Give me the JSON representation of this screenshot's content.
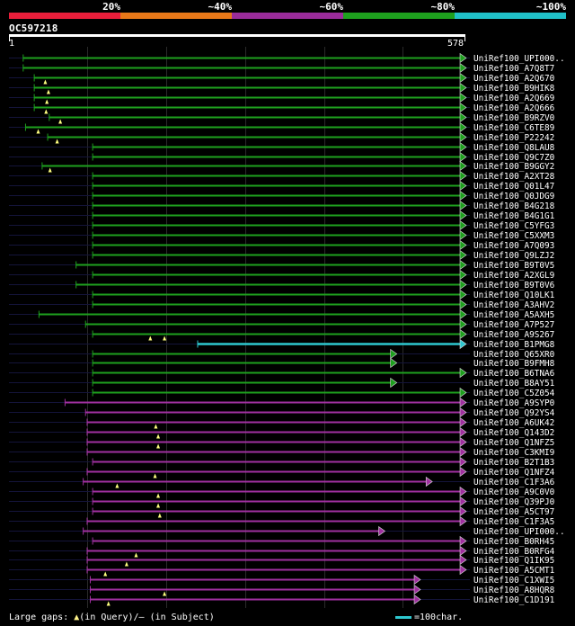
{
  "header": {
    "scale_labels": [
      "20%",
      "~40%",
      "~60%",
      "~80%",
      "~100%"
    ],
    "scale_colors": [
      "#e81e3a",
      "#e87818",
      "#9a2c9a",
      "#1ea01e",
      "#20c0c8"
    ],
    "query_id": "OC597218",
    "query_start": "1",
    "query_end": "578"
  },
  "colors": {
    "green": "#1ea01e",
    "magenta": "#a030a0",
    "cyan": "#2ec8d0",
    "gap_marker": "#ffff80",
    "background": "#000000"
  },
  "hits": [
    {
      "name": "UniRef100_UPI000..",
      "color": "green",
      "start": 19,
      "end": 578,
      "gaps": []
    },
    {
      "name": "UniRef100_A7Q8T7",
      "color": "green",
      "start": 19,
      "end": 578,
      "gaps": []
    },
    {
      "name": "UniRef100_A2Q670",
      "color": "green",
      "start": 33,
      "end": 578,
      "gaps": [
        47
      ]
    },
    {
      "name": "UniRef100_B9HIK8",
      "color": "green",
      "start": 33,
      "end": 578,
      "gaps": [
        51
      ]
    },
    {
      "name": "UniRef100_A2Q669",
      "color": "green",
      "start": 33,
      "end": 578,
      "gaps": [
        49
      ]
    },
    {
      "name": "UniRef100_A2Q666",
      "color": "green",
      "start": 33,
      "end": 578,
      "gaps": [
        48
      ]
    },
    {
      "name": "UniRef100_B9RZV0",
      "color": "green",
      "start": 52,
      "end": 578,
      "gaps": [
        66
      ]
    },
    {
      "name": "UniRef100_C6TE89",
      "color": "green",
      "start": 22,
      "end": 578,
      "gaps": [
        38
      ]
    },
    {
      "name": "UniRef100_P22242",
      "color": "green",
      "start": 50,
      "end": 578,
      "gaps": [
        62
      ]
    },
    {
      "name": "UniRef100_Q8LAU8",
      "color": "green",
      "start": 107,
      "end": 578,
      "gaps": []
    },
    {
      "name": "UniRef100_Q9C7Z0",
      "color": "green",
      "start": 107,
      "end": 578,
      "gaps": []
    },
    {
      "name": "UniRef100_B9GGY2",
      "color": "green",
      "start": 43,
      "end": 578,
      "gaps": [
        53
      ]
    },
    {
      "name": "UniRef100_A2XT28",
      "color": "green",
      "start": 107,
      "end": 578,
      "gaps": []
    },
    {
      "name": "UniRef100_Q01L47",
      "color": "green",
      "start": 107,
      "end": 578,
      "gaps": []
    },
    {
      "name": "UniRef100_Q0JDG9",
      "color": "green",
      "start": 107,
      "end": 578,
      "gaps": []
    },
    {
      "name": "UniRef100_B4G218",
      "color": "green",
      "start": 107,
      "end": 578,
      "gaps": []
    },
    {
      "name": "UniRef100_B4G1G1",
      "color": "green",
      "start": 107,
      "end": 578,
      "gaps": []
    },
    {
      "name": "UniRef100_C5YFG3",
      "color": "green",
      "start": 107,
      "end": 578,
      "gaps": []
    },
    {
      "name": "UniRef100_C5XXM3",
      "color": "green",
      "start": 107,
      "end": 578,
      "gaps": []
    },
    {
      "name": "UniRef100_A7Q093",
      "color": "green",
      "start": 107,
      "end": 578,
      "gaps": []
    },
    {
      "name": "UniRef100_Q9LZJ2",
      "color": "green",
      "start": 107,
      "end": 578,
      "gaps": []
    },
    {
      "name": "UniRef100_B9T0V5",
      "color": "green",
      "start": 86,
      "end": 578,
      "gaps": []
    },
    {
      "name": "UniRef100_A2XGL9",
      "color": "green",
      "start": 107,
      "end": 578,
      "gaps": []
    },
    {
      "name": "UniRef100_B9T0V6",
      "color": "green",
      "start": 86,
      "end": 578,
      "gaps": []
    },
    {
      "name": "UniRef100_Q10LK1",
      "color": "green",
      "start": 107,
      "end": 578,
      "gaps": []
    },
    {
      "name": "UniRef100_A3AHV2",
      "color": "green",
      "start": 107,
      "end": 578,
      "gaps": []
    },
    {
      "name": "UniRef100_A5AXH5",
      "color": "green",
      "start": 39,
      "end": 578,
      "gaps": []
    },
    {
      "name": "UniRef100_A7P527",
      "color": "green",
      "start": 98,
      "end": 578,
      "gaps": []
    },
    {
      "name": "UniRef100_A9S267",
      "color": "green",
      "start": 107,
      "end": 578,
      "gaps": [
        180,
        198
      ]
    },
    {
      "name": "UniRef100_B1PMG8",
      "color": "cyan",
      "start": 240,
      "end": 578,
      "gaps": []
    },
    {
      "name": "UniRef100_Q65XR0",
      "color": "green",
      "start": 107,
      "end": 490,
      "gaps": []
    },
    {
      "name": "UniRef100_B9FMH8",
      "color": "green",
      "start": 107,
      "end": 490,
      "gaps": []
    },
    {
      "name": "UniRef100_B6TNA6",
      "color": "green",
      "start": 107,
      "end": 578,
      "gaps": []
    },
    {
      "name": "UniRef100_B8AY51",
      "color": "green",
      "start": 107,
      "end": 490,
      "gaps": []
    },
    {
      "name": "UniRef100_C5Z054",
      "color": "green",
      "start": 107,
      "end": 578,
      "gaps": []
    },
    {
      "name": "UniRef100_A9SYP0",
      "color": "magenta",
      "start": 72,
      "end": 578,
      "gaps": []
    },
    {
      "name": "UniRef100_Q92YS4",
      "color": "magenta",
      "start": 98,
      "end": 578,
      "gaps": []
    },
    {
      "name": "UniRef100_A6UK42",
      "color": "magenta",
      "start": 100,
      "end": 578,
      "gaps": [
        187
      ]
    },
    {
      "name": "UniRef100_Q143D2",
      "color": "magenta",
      "start": 100,
      "end": 578,
      "gaps": [
        190
      ]
    },
    {
      "name": "UniRef100_Q1NFZ5",
      "color": "magenta",
      "start": 100,
      "end": 578,
      "gaps": [
        190
      ]
    },
    {
      "name": "UniRef100_C3KMI9",
      "color": "magenta",
      "start": 100,
      "end": 578,
      "gaps": []
    },
    {
      "name": "UniRef100_B2T1B3",
      "color": "magenta",
      "start": 107,
      "end": 578,
      "gaps": []
    },
    {
      "name": "UniRef100_Q1NFZ4",
      "color": "magenta",
      "start": 100,
      "end": 578,
      "gaps": [
        186
      ]
    },
    {
      "name": "UniRef100_C1F3A6",
      "color": "magenta",
      "start": 95,
      "end": 535,
      "gaps": [
        138
      ]
    },
    {
      "name": "UniRef100_A9C0V0",
      "color": "magenta",
      "start": 107,
      "end": 578,
      "gaps": [
        190
      ]
    },
    {
      "name": "UniRef100_Q39PJ0",
      "color": "magenta",
      "start": 107,
      "end": 578,
      "gaps": [
        190
      ]
    },
    {
      "name": "UniRef100_A5CT97",
      "color": "magenta",
      "start": 107,
      "end": 578,
      "gaps": [
        192
      ]
    },
    {
      "name": "UniRef100_C1F3A5",
      "color": "magenta",
      "start": 100,
      "end": 578,
      "gaps": []
    },
    {
      "name": "UniRef100_UPI000..",
      "color": "magenta",
      "start": 95,
      "end": 475,
      "gaps": []
    },
    {
      "name": "UniRef100_B0RH45",
      "color": "magenta",
      "start": 107,
      "end": 578,
      "gaps": []
    },
    {
      "name": "UniRef100_B0RFG4",
      "color": "magenta",
      "start": 100,
      "end": 578,
      "gaps": [
        162
      ]
    },
    {
      "name": "UniRef100_Q1IK95",
      "color": "magenta",
      "start": 100,
      "end": 578,
      "gaps": [
        150
      ]
    },
    {
      "name": "UniRef100_A5CMT1",
      "color": "magenta",
      "start": 100,
      "end": 578,
      "gaps": [
        123
      ]
    },
    {
      "name": "UniRef100_C1XWI5",
      "color": "magenta",
      "start": 104,
      "end": 520,
      "gaps": []
    },
    {
      "name": "UniRef100_A8HQR8",
      "color": "magenta",
      "start": 104,
      "end": 520,
      "gaps": [
        198
      ]
    },
    {
      "name": "UniRef100_C1D191",
      "color": "magenta",
      "start": 104,
      "end": 520,
      "gaps": [
        127
      ]
    }
  ],
  "legend": {
    "large_gaps_prefix": "Large gaps: ",
    "query_marker": "▲",
    "in_query": "(in Query)/",
    "subject_marker": "–",
    "in_subject": " (in Subject)",
    "scale_text": "=100char."
  }
}
